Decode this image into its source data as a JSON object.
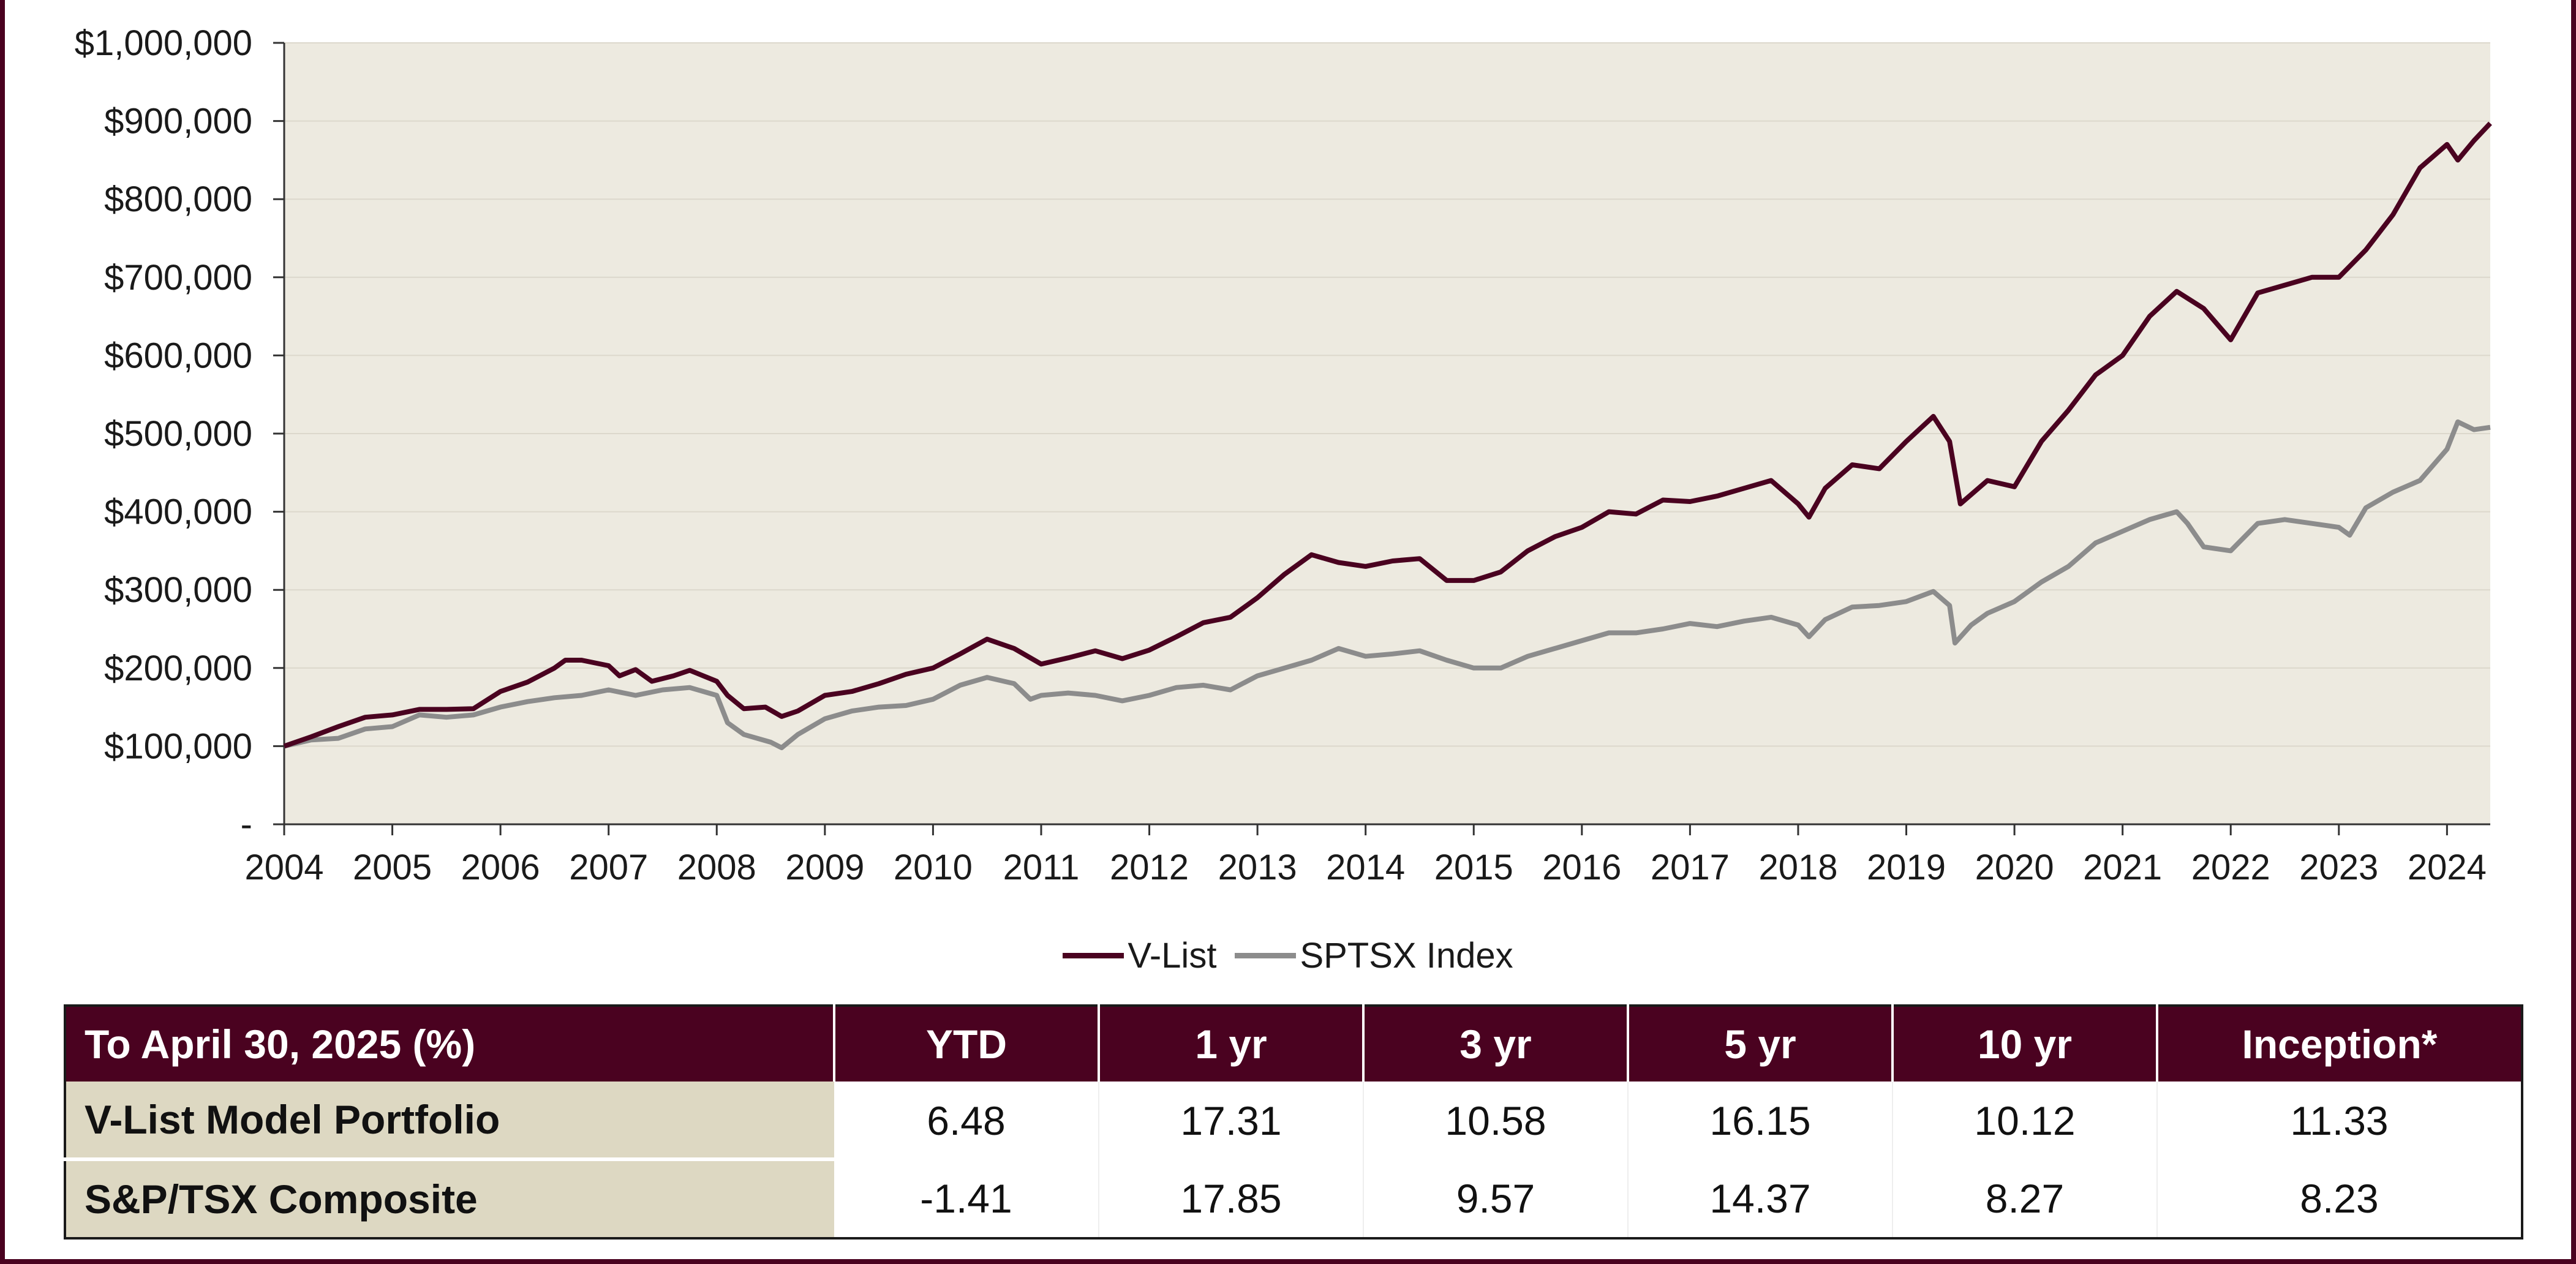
{
  "chart_data": {
    "type": "line",
    "xlim": [
      2004,
      2024.4
    ],
    "ylim": [
      0,
      1000000
    ],
    "grid": true,
    "legend_position": "bottom",
    "plot_background": "#edeae0",
    "x_ticks": [
      2004,
      2005,
      2006,
      2007,
      2008,
      2009,
      2010,
      2011,
      2012,
      2013,
      2014,
      2015,
      2016,
      2017,
      2018,
      2019,
      2020,
      2021,
      2022,
      2023,
      2024
    ],
    "x_tick_labels": [
      "2004",
      "2005",
      "2006",
      "2007",
      "2008",
      "2009",
      "2010",
      "2011",
      "2012",
      "2013",
      "2014",
      "2015",
      "2016",
      "2017",
      "2018",
      "2019",
      "2020",
      "2021",
      "2022",
      "2023",
      "2024"
    ],
    "y_ticks": [
      0,
      100000,
      200000,
      300000,
      400000,
      500000,
      600000,
      700000,
      800000,
      900000,
      1000000
    ],
    "y_tick_labels": [
      "-",
      "$100,000",
      "$200,000",
      "$300,000",
      "$400,000",
      "$500,000",
      "$600,000",
      "$700,000",
      "$800,000",
      "$900,000",
      "$1,000,000"
    ],
    "series": [
      {
        "name": "V-List",
        "color": "#4a0220",
        "points": [
          [
            2004.0,
            100000
          ],
          [
            2004.25,
            112000
          ],
          [
            2004.5,
            125000
          ],
          [
            2004.75,
            137000
          ],
          [
            2005.0,
            140000
          ],
          [
            2005.25,
            147000
          ],
          [
            2005.5,
            147000
          ],
          [
            2005.75,
            148000
          ],
          [
            2006.0,
            170000
          ],
          [
            2006.25,
            182000
          ],
          [
            2006.5,
            200000
          ],
          [
            2006.6,
            210000
          ],
          [
            2006.75,
            210000
          ],
          [
            2007.0,
            203000
          ],
          [
            2007.1,
            190000
          ],
          [
            2007.25,
            198000
          ],
          [
            2007.4,
            183000
          ],
          [
            2007.6,
            190000
          ],
          [
            2007.75,
            197000
          ],
          [
            2008.0,
            183000
          ],
          [
            2008.1,
            165000
          ],
          [
            2008.25,
            148000
          ],
          [
            2008.45,
            150000
          ],
          [
            2008.6,
            138000
          ],
          [
            2008.75,
            145000
          ],
          [
            2009.0,
            165000
          ],
          [
            2009.25,
            170000
          ],
          [
            2009.5,
            180000
          ],
          [
            2009.75,
            192000
          ],
          [
            2010.0,
            200000
          ],
          [
            2010.25,
            218000
          ],
          [
            2010.5,
            237000
          ],
          [
            2010.75,
            225000
          ],
          [
            2011.0,
            205000
          ],
          [
            2011.25,
            213000
          ],
          [
            2011.5,
            222000
          ],
          [
            2011.75,
            212000
          ],
          [
            2012.0,
            223000
          ],
          [
            2012.25,
            240000
          ],
          [
            2012.5,
            258000
          ],
          [
            2012.75,
            265000
          ],
          [
            2013.0,
            290000
          ],
          [
            2013.25,
            320000
          ],
          [
            2013.5,
            345000
          ],
          [
            2013.75,
            335000
          ],
          [
            2014.0,
            330000
          ],
          [
            2014.25,
            337000
          ],
          [
            2014.5,
            340000
          ],
          [
            2014.75,
            312000
          ],
          [
            2015.0,
            312000
          ],
          [
            2015.25,
            323000
          ],
          [
            2015.5,
            350000
          ],
          [
            2015.75,
            368000
          ],
          [
            2016.0,
            380000
          ],
          [
            2016.25,
            400000
          ],
          [
            2016.5,
            397000
          ],
          [
            2016.75,
            415000
          ],
          [
            2017.0,
            413000
          ],
          [
            2017.25,
            420000
          ],
          [
            2017.5,
            430000
          ],
          [
            2017.75,
            440000
          ],
          [
            2018.0,
            410000
          ],
          [
            2018.1,
            393000
          ],
          [
            2018.25,
            430000
          ],
          [
            2018.5,
            460000
          ],
          [
            2018.75,
            455000
          ],
          [
            2019.0,
            490000
          ],
          [
            2019.25,
            522000
          ],
          [
            2019.4,
            490000
          ],
          [
            2019.5,
            410000
          ],
          [
            2019.75,
            440000
          ],
          [
            2020.0,
            432000
          ],
          [
            2020.25,
            490000
          ],
          [
            2020.5,
            530000
          ],
          [
            2020.75,
            575000
          ],
          [
            2021.0,
            600000
          ],
          [
            2021.25,
            650000
          ],
          [
            2021.5,
            682000
          ],
          [
            2021.75,
            660000
          ],
          [
            2022.0,
            620000
          ],
          [
            2022.25,
            680000
          ],
          [
            2022.5,
            690000
          ],
          [
            2022.75,
            700000
          ],
          [
            2023.0,
            700000
          ],
          [
            2023.25,
            735000
          ],
          [
            2023.5,
            780000
          ],
          [
            2023.75,
            840000
          ],
          [
            2024.0,
            870000
          ],
          [
            2024.1,
            850000
          ],
          [
            2024.25,
            875000
          ],
          [
            2024.4,
            897000
          ]
        ]
      },
      {
        "name": "SPTSX Index",
        "color": "#8c8c8c",
        "points": [
          [
            2004.0,
            100000
          ],
          [
            2004.25,
            108000
          ],
          [
            2004.5,
            110000
          ],
          [
            2004.75,
            122000
          ],
          [
            2005.0,
            125000
          ],
          [
            2005.25,
            140000
          ],
          [
            2005.5,
            137000
          ],
          [
            2005.75,
            140000
          ],
          [
            2006.0,
            150000
          ],
          [
            2006.25,
            157000
          ],
          [
            2006.5,
            162000
          ],
          [
            2006.75,
            165000
          ],
          [
            2007.0,
            172000
          ],
          [
            2007.25,
            165000
          ],
          [
            2007.5,
            172000
          ],
          [
            2007.75,
            175000
          ],
          [
            2008.0,
            165000
          ],
          [
            2008.1,
            130000
          ],
          [
            2008.25,
            115000
          ],
          [
            2008.5,
            105000
          ],
          [
            2008.6,
            98000
          ],
          [
            2008.75,
            115000
          ],
          [
            2009.0,
            135000
          ],
          [
            2009.25,
            145000
          ],
          [
            2009.5,
            150000
          ],
          [
            2009.75,
            152000
          ],
          [
            2010.0,
            160000
          ],
          [
            2010.25,
            178000
          ],
          [
            2010.5,
            188000
          ],
          [
            2010.75,
            180000
          ],
          [
            2010.9,
            160000
          ],
          [
            2011.0,
            165000
          ],
          [
            2011.25,
            168000
          ],
          [
            2011.5,
            165000
          ],
          [
            2011.75,
            158000
          ],
          [
            2012.0,
            165000
          ],
          [
            2012.25,
            175000
          ],
          [
            2012.5,
            178000
          ],
          [
            2012.75,
            172000
          ],
          [
            2013.0,
            190000
          ],
          [
            2013.25,
            200000
          ],
          [
            2013.5,
            210000
          ],
          [
            2013.75,
            225000
          ],
          [
            2014.0,
            215000
          ],
          [
            2014.25,
            218000
          ],
          [
            2014.5,
            222000
          ],
          [
            2014.75,
            210000
          ],
          [
            2015.0,
            200000
          ],
          [
            2015.25,
            200000
          ],
          [
            2015.5,
            215000
          ],
          [
            2015.75,
            225000
          ],
          [
            2016.0,
            235000
          ],
          [
            2016.25,
            245000
          ],
          [
            2016.5,
            245000
          ],
          [
            2016.75,
            250000
          ],
          [
            2017.0,
            257000
          ],
          [
            2017.25,
            253000
          ],
          [
            2017.5,
            260000
          ],
          [
            2017.75,
            265000
          ],
          [
            2018.0,
            255000
          ],
          [
            2018.1,
            240000
          ],
          [
            2018.25,
            262000
          ],
          [
            2018.5,
            278000
          ],
          [
            2018.75,
            280000
          ],
          [
            2019.0,
            285000
          ],
          [
            2019.25,
            298000
          ],
          [
            2019.4,
            280000
          ],
          [
            2019.45,
            232000
          ],
          [
            2019.6,
            255000
          ],
          [
            2019.75,
            270000
          ],
          [
            2020.0,
            285000
          ],
          [
            2020.25,
            310000
          ],
          [
            2020.5,
            330000
          ],
          [
            2020.75,
            360000
          ],
          [
            2021.0,
            375000
          ],
          [
            2021.25,
            390000
          ],
          [
            2021.5,
            400000
          ],
          [
            2021.6,
            385000
          ],
          [
            2021.75,
            355000
          ],
          [
            2022.0,
            350000
          ],
          [
            2022.25,
            385000
          ],
          [
            2022.5,
            390000
          ],
          [
            2022.75,
            385000
          ],
          [
            2023.0,
            380000
          ],
          [
            2023.1,
            370000
          ],
          [
            2023.25,
            405000
          ],
          [
            2023.5,
            425000
          ],
          [
            2023.75,
            440000
          ],
          [
            2024.0,
            480000
          ],
          [
            2024.1,
            515000
          ],
          [
            2024.25,
            505000
          ],
          [
            2024.4,
            508000
          ]
        ]
      }
    ]
  },
  "table": {
    "headers": [
      "To April 30, 2025 (%)",
      "YTD",
      "1 yr",
      "3 yr",
      "5 yr",
      "10 yr",
      "Inception*"
    ],
    "rows": [
      {
        "label": "V-List Model Portfolio",
        "values": [
          "6.48",
          "17.31",
          "10.58",
          "16.15",
          "10.12",
          "11.33"
        ]
      },
      {
        "label": "S&P/TSX Composite",
        "values": [
          "-1.41",
          "17.85",
          "9.57",
          "14.37",
          "8.27",
          "8.23"
        ]
      }
    ]
  },
  "colors": {
    "accent": "#4a0220",
    "row_label_bg": "#ddd8c2"
  }
}
